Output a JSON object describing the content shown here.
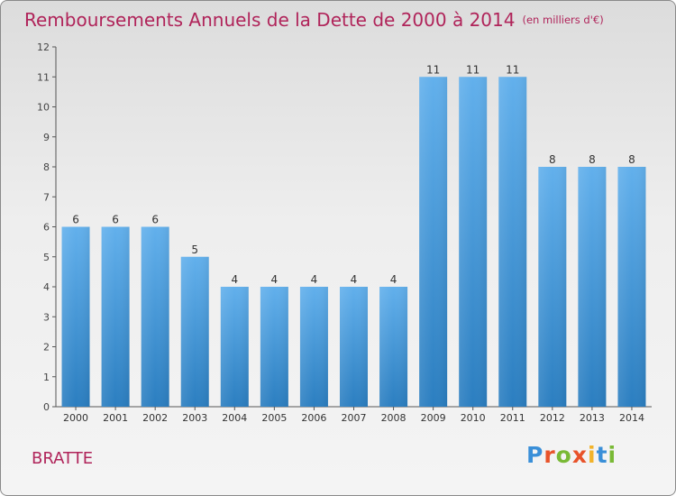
{
  "header": {
    "title": "Remboursements Annuels de la Dette de 2000 à 2014",
    "unit": "(en milliers d'€)"
  },
  "footer": {
    "city": "BRATTE",
    "logo": "Proxiti",
    "logo_colors": [
      "#3a8fd8",
      "#e8532a",
      "#79b935",
      "#e8532a",
      "#f2b32a",
      "#3a8fd8",
      "#79b935"
    ]
  },
  "chart_data": {
    "type": "bar",
    "categories": [
      "2000",
      "2001",
      "2002",
      "2003",
      "2004",
      "2005",
      "2006",
      "2007",
      "2008",
      "2009",
      "2010",
      "2011",
      "2012",
      "2013",
      "2014"
    ],
    "values": [
      6,
      6,
      6,
      5,
      4,
      4,
      4,
      4,
      4,
      11,
      11,
      11,
      8,
      8,
      8
    ],
    "ylim": [
      0,
      12
    ],
    "yticks": [
      0,
      1,
      2,
      3,
      4,
      5,
      6,
      7,
      8,
      9,
      10,
      11,
      12
    ],
    "data_labels": true,
    "grid": false,
    "bar_color_top": "#62b0ec",
    "bar_color_bottom": "#2b7ec0"
  }
}
